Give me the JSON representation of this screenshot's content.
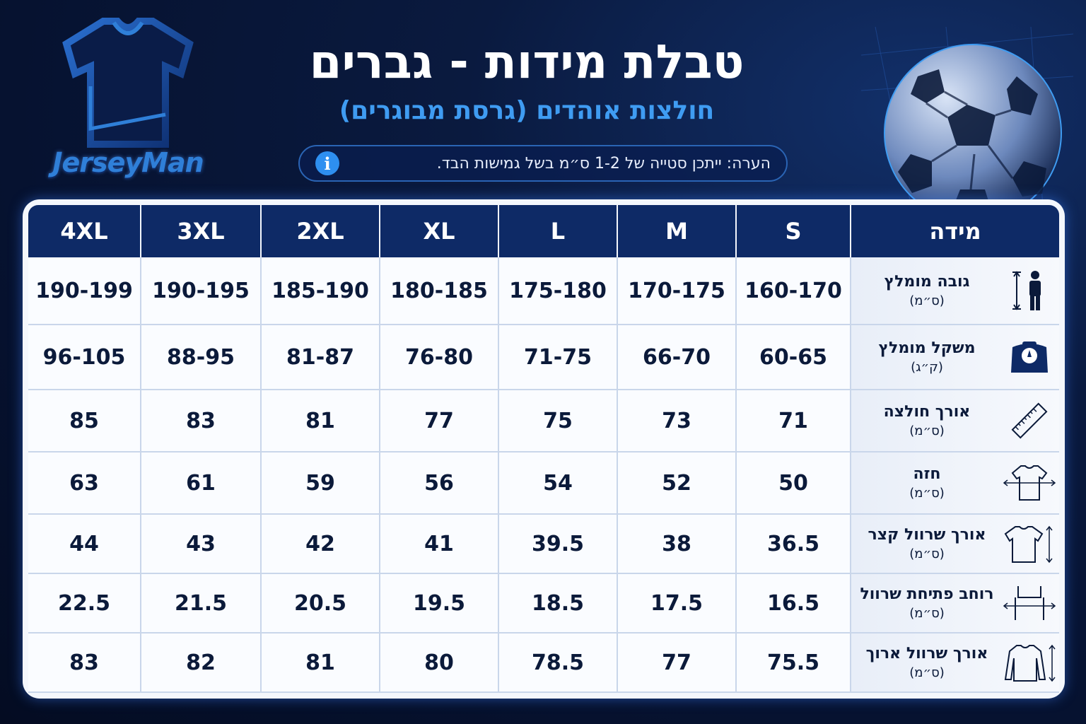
{
  "brand": {
    "name": "JerseyMan"
  },
  "header": {
    "title": "טבלת מידות - גברים",
    "subtitle": "חולצות אוהדים (גרסת מבוגרים)",
    "note": "הערה: ייתכן סטייה של 1-2 ס״מ בשל גמישות הבד."
  },
  "table": {
    "label_header": "מידה",
    "sizes": [
      "4XL",
      "3XL",
      "2XL",
      "XL",
      "L",
      "M",
      "S"
    ],
    "rows": [
      {
        "label": "גובה מומלץ",
        "unit": "(ס״מ)",
        "icon": "height-person-icon",
        "values": [
          "190-199",
          "190-195",
          "185-190",
          "180-185",
          "175-180",
          "170-175",
          "160-170"
        ]
      },
      {
        "label": "משקל מומלץ",
        "unit": "(ק״ג)",
        "icon": "scale-weight-icon",
        "values": [
          "96-105",
          "88-95",
          "81-87",
          "76-80",
          "71-75",
          "66-70",
          "60-65"
        ]
      },
      {
        "label": "אורך חולצה",
        "unit": "(ס״מ)",
        "icon": "ruler-icon",
        "values": [
          "85",
          "83",
          "81",
          "77",
          "75",
          "73",
          "71"
        ]
      },
      {
        "label": "חזה",
        "unit": "(ס״מ)",
        "icon": "chest-width-icon",
        "values": [
          "63",
          "61",
          "59",
          "56",
          "54",
          "52",
          "50"
        ]
      },
      {
        "label": "אורך שרוול קצר",
        "unit": "(ס״מ)",
        "icon": "short-sleeve-icon",
        "values": [
          "44",
          "43",
          "42",
          "41",
          "39.5",
          "38",
          "36.5"
        ]
      },
      {
        "label": "רוחב פתיחת שרוול",
        "unit": "(ס״מ)",
        "icon": "sleeve-opening-icon",
        "values": [
          "22.5",
          "21.5",
          "20.5",
          "19.5",
          "18.5",
          "17.5",
          "16.5"
        ]
      },
      {
        "label": "אורך שרוול ארוך",
        "unit": "(ס״מ)",
        "icon": "long-sleeve-icon",
        "values": [
          "83",
          "82",
          "81",
          "80",
          "78.5",
          "77",
          "75.5"
        ]
      }
    ]
  },
  "colors": {
    "background": "#061230",
    "header": "#0e2a66",
    "accent": "#3f9cf2",
    "text": "#0b1a3a"
  }
}
